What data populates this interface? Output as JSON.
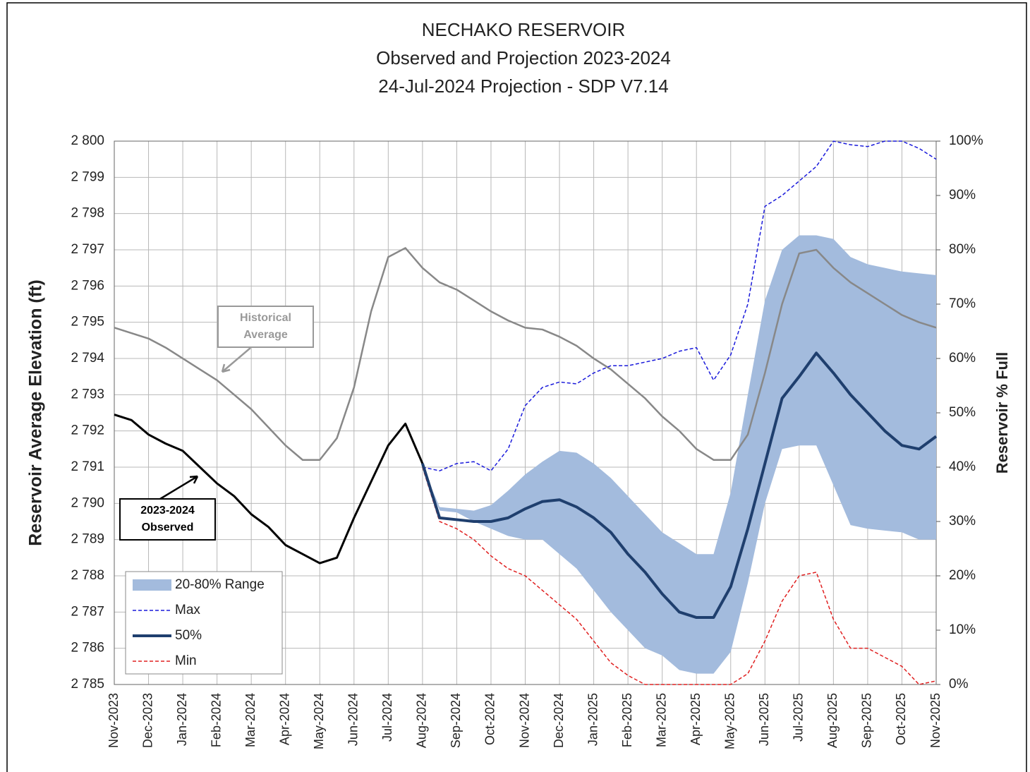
{
  "chart_data": {
    "type": "line",
    "title": [
      "NECHAKO RESERVOIR",
      "Observed and Projection 2023-2024",
      "24-Jul-2024 Projection - SDP V7.14"
    ],
    "y_label": "Reservoir Average Elevation (ft)",
    "y2_label": "Reservoir % Full",
    "categories": [
      "Nov-2023",
      null,
      "Dec-2023",
      null,
      "Jan-2024",
      null,
      "Feb-2024",
      null,
      "Mar-2024",
      null,
      "Apr-2024",
      null,
      "May-2024",
      null,
      "Jun-2024",
      null,
      "Jul-2024",
      null,
      "Aug-2024",
      null,
      "Sep-2024",
      null,
      "Oct-2024",
      null,
      "Nov-2024",
      null,
      "Dec-2024",
      null,
      "Jan-2025",
      null,
      "Feb-2025",
      null,
      "Mar-2025",
      null,
      "Apr-2025",
      null,
      "May-2025",
      null,
      "Jun-2025",
      null,
      "Jul-2025",
      null,
      "Aug-2025",
      null,
      "Sep-2025",
      null,
      "Oct-2025",
      null,
      "Nov-2025"
    ],
    "ylim": [
      2785,
      2800
    ],
    "yticks": [
      {
        "value": 2785,
        "label": "2 785"
      },
      {
        "value": 2786,
        "label": "2 786"
      },
      {
        "value": 2787,
        "label": "2 787"
      },
      {
        "value": 2788,
        "label": "2 788"
      },
      {
        "value": 2789,
        "label": "2 789"
      },
      {
        "value": 2790,
        "label": "2 790"
      },
      {
        "value": 2791,
        "label": "2 791"
      },
      {
        "value": 2792,
        "label": "2 792"
      },
      {
        "value": 2793,
        "label": "2 793"
      },
      {
        "value": 2794,
        "label": "2 794"
      },
      {
        "value": 2795,
        "label": "2 795"
      },
      {
        "value": 2796,
        "label": "2 796"
      },
      {
        "value": 2797,
        "label": "2 797"
      },
      {
        "value": 2798,
        "label": "2 798"
      },
      {
        "value": 2799,
        "label": "2 799"
      },
      {
        "value": 2800,
        "label": "2 800"
      }
    ],
    "y2lim": [
      0,
      100
    ],
    "y2ticks": [
      {
        "value": 0,
        "label": "0%"
      },
      {
        "value": 10,
        "label": "10%"
      },
      {
        "value": 20,
        "label": "20%"
      },
      {
        "value": 30,
        "label": "30%"
      },
      {
        "value": 40,
        "label": "40%"
      },
      {
        "value": 50,
        "label": "50%"
      },
      {
        "value": 60,
        "label": "60%"
      },
      {
        "value": 70,
        "label": "70%"
      },
      {
        "value": 80,
        "label": "80%"
      },
      {
        "value": 90,
        "label": "90%"
      },
      {
        "value": 100,
        "label": "100%"
      }
    ],
    "grid": true,
    "legend": "lower left",
    "series": [
      {
        "name": "20-80% Range",
        "kind": "band",
        "color": "#a3bbdd",
        "lower": [
          null,
          null,
          null,
          null,
          null,
          null,
          null,
          null,
          null,
          null,
          null,
          null,
          null,
          null,
          null,
          null,
          null,
          null,
          2791.0,
          2789.8,
          2789.75,
          2789.5,
          2789.3,
          2789.1,
          2789.0,
          2789.0,
          2788.6,
          2788.2,
          2787.6,
          2787.0,
          2786.5,
          2786.0,
          2785.8,
          2785.4,
          2785.3,
          2785.3,
          2785.9,
          2787.8,
          2790.0,
          2791.5,
          2791.6,
          2791.6,
          2790.5,
          2789.4,
          2789.3,
          2789.25,
          2789.2,
          2789.0,
          2789.0
        ],
        "upper": [
          null,
          null,
          null,
          null,
          null,
          null,
          null,
          null,
          null,
          null,
          null,
          null,
          null,
          null,
          null,
          null,
          null,
          null,
          2791.0,
          2789.9,
          2789.85,
          2789.8,
          2789.95,
          2790.35,
          2790.8,
          2791.15,
          2791.45,
          2791.4,
          2791.1,
          2790.7,
          2790.2,
          2789.7,
          2789.2,
          2788.9,
          2788.6,
          2788.6,
          2790.3,
          2793.0,
          2795.6,
          2797.0,
          2797.4,
          2797.4,
          2797.3,
          2796.8,
          2796.6,
          2796.5,
          2796.4,
          2796.35,
          2796.3
        ]
      },
      {
        "name": "Max",
        "color": "#1a1adb",
        "dash": true,
        "width": 1.5,
        "values": [
          null,
          null,
          null,
          null,
          null,
          null,
          null,
          null,
          null,
          null,
          null,
          null,
          null,
          null,
          null,
          null,
          null,
          null,
          2791.0,
          2790.9,
          2791.1,
          2791.15,
          2790.9,
          2791.5,
          2792.7,
          2793.2,
          2793.35,
          2793.3,
          2793.6,
          2793.8,
          2793.8,
          2793.9,
          2794.0,
          2794.2,
          2794.3,
          2793.4,
          2794.1,
          2795.5,
          2798.2,
          2798.5,
          2798.9,
          2799.3,
          2800.0,
          2799.9,
          2799.85,
          2800.0,
          2800.0,
          2799.8,
          2799.5
        ]
      },
      {
        "name": "50%",
        "color": "#1f3f6e",
        "width": 4,
        "values": [
          null,
          null,
          null,
          null,
          null,
          null,
          null,
          null,
          null,
          null,
          null,
          null,
          null,
          null,
          null,
          null,
          null,
          null,
          2791.1,
          2789.6,
          2789.55,
          2789.5,
          2789.5,
          2789.6,
          2789.85,
          2790.05,
          2790.1,
          2789.9,
          2789.6,
          2789.2,
          2788.6,
          2788.1,
          2787.5,
          2787.0,
          2786.85,
          2786.85,
          2787.7,
          2789.3,
          2791.1,
          2792.9,
          2793.5,
          2794.15,
          2793.6,
          2793.0,
          2792.5,
          2792.0,
          2791.6,
          2791.5,
          2791.85
        ]
      },
      {
        "name": "Min",
        "color": "#e02020",
        "dash": true,
        "width": 1.5,
        "values": [
          null,
          null,
          null,
          null,
          null,
          null,
          null,
          null,
          null,
          null,
          null,
          null,
          null,
          null,
          null,
          null,
          null,
          null,
          2791.0,
          2789.5,
          2789.3,
          2789.0,
          2788.55,
          2788.2,
          2788.0,
          2787.6,
          2787.2,
          2786.8,
          2786.2,
          2785.6,
          2785.25,
          2785.0,
          2785.0,
          2785.0,
          2785.0,
          2785.0,
          2785.0,
          2785.3,
          2786.2,
          2787.3,
          2788.0,
          2788.1,
          2786.8,
          2786.0,
          2786.0,
          2785.75,
          2785.5,
          2785.0,
          2785.1
        ]
      },
      {
        "color": "#888888",
        "width": 2.5,
        "values": [
          2794.85,
          2794.7,
          2794.55,
          2794.3,
          2794.0,
          2793.7,
          2793.4,
          2793.0,
          2792.6,
          2792.1,
          2791.6,
          2791.2,
          2791.2,
          2791.8,
          2793.2,
          2795.3,
          2796.8,
          2797.05,
          2796.5,
          2796.1,
          2795.9,
          2795.6,
          2795.3,
          2795.05,
          2794.85,
          2794.8,
          2794.6,
          2794.35,
          2794.0,
          2793.7,
          2793.3,
          2792.9,
          2792.4,
          2792.0,
          2791.5,
          2791.2,
          2791.2,
          2791.9,
          2793.6,
          2795.5,
          2796.9,
          2797.0,
          2796.5,
          2796.1,
          2795.8,
          2795.5,
          2795.2,
          2795.0,
          2794.85
        ]
      },
      {
        "color": "#000000",
        "width": 3,
        "values": [
          2792.45,
          2792.3,
          2791.9,
          2791.65,
          2791.45,
          2791.0,
          2790.55,
          2790.2,
          2789.7,
          2789.35,
          2788.85,
          2788.6,
          2788.35,
          2788.5,
          2789.6,
          2790.6,
          2791.6,
          2792.2,
          2791.1,
          null,
          null,
          null,
          null,
          null,
          null,
          null,
          null,
          null,
          null,
          null,
          null,
          null,
          null,
          null,
          null,
          null,
          null,
          null,
          null,
          null,
          null,
          null,
          null,
          null,
          null,
          null,
          null,
          null,
          null
        ]
      }
    ],
    "annotations": [
      {
        "lines": [
          "Historical",
          "Average"
        ],
        "color": "#999999"
      },
      {
        "lines": [
          "2023-2024",
          "Observed"
        ],
        "color": "#000000"
      }
    ]
  }
}
